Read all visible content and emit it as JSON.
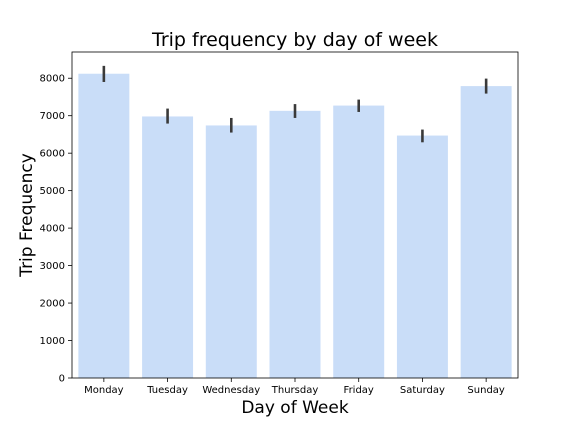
{
  "chart_data": {
    "type": "bar",
    "title": "Trip frequency by day of week",
    "xlabel": "Day of Week",
    "ylabel": "Trip Frequency",
    "categories": [
      "Monday",
      "Tuesday",
      "Wednesday",
      "Thursday",
      "Friday",
      "Saturday",
      "Sunday"
    ],
    "values": [
      8120,
      6980,
      6740,
      7130,
      7270,
      6470,
      7790
    ],
    "error_bars": [
      [
        7900,
        8330
      ],
      [
        6790,
        7190
      ],
      [
        6550,
        6940
      ],
      [
        6940,
        7310
      ],
      [
        7100,
        7430
      ],
      [
        6290,
        6630
      ],
      [
        7590,
        7990
      ]
    ],
    "ylim": [
      0,
      8700
    ],
    "yticks": [
      0,
      1000,
      2000,
      3000,
      4000,
      5000,
      6000,
      7000,
      8000
    ],
    "grid": false,
    "legend": "none",
    "colors": {
      "bar": "#c9ddf8",
      "error_bar": "#3a3a3a",
      "axis": "#000000"
    }
  }
}
